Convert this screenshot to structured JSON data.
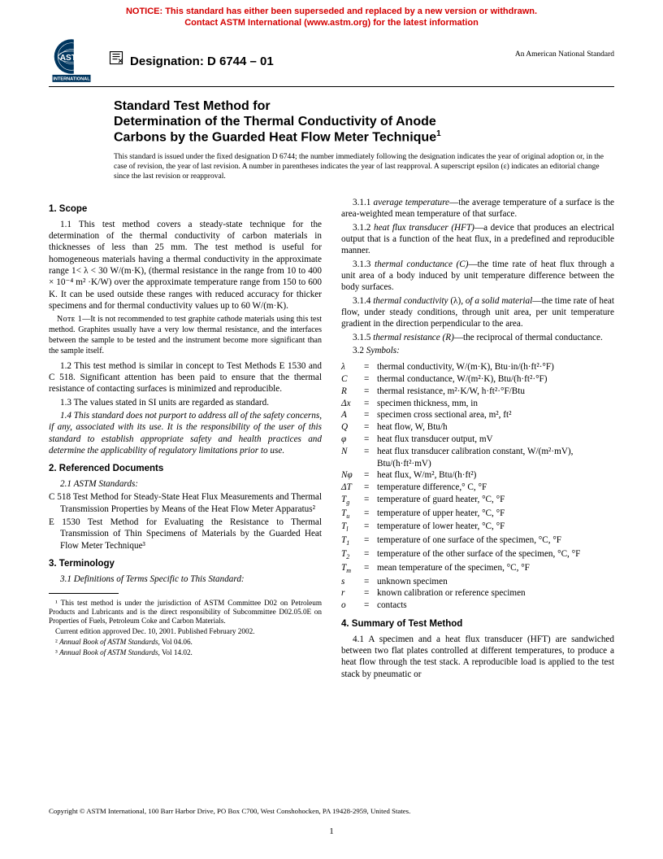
{
  "notice": {
    "line1": "NOTICE: This standard has either been superseded and replaced by a new version or withdrawn.",
    "line2": "Contact ASTM International (www.astm.org) for the latest information"
  },
  "header": {
    "designation_label": "Designation: D 6744 – 01",
    "right_note": "An American National Standard"
  },
  "title": {
    "line1": "Standard Test Method for",
    "line2": "Determination of the Thermal Conductivity of Anode",
    "line3": "Carbons by the Guarded Heat Flow Meter Technique"
  },
  "issued_note": "This standard is issued under the fixed designation D 6744; the number immediately following the designation indicates the year of original adoption or, in the case of revision, the year of last revision. A number in parentheses indicates the year of last reapproval. A superscript epsilon (ε) indicates an editorial change since the last revision or reapproval.",
  "sections": {
    "scope": {
      "head": "1. Scope",
      "p11": "1.1 This test method covers a steady-state technique for the determination of the thermal conductivity of carbon materials in thicknesses of less than 25 mm. The test method is useful for homogeneous materials having a thermal conductivity in the approximate range 1< λ < 30 W/(m·K), (thermal resistance in the range from 10 to 400 × 10⁻⁴ m² ·K/W) over the approximate temperature range from 150 to 600 K. It can be used outside these ranges with reduced accuracy for thicker specimens and for thermal conductivity values up to 60 W/(m·K).",
      "note1_label": "Nᴏᴛᴇ 1",
      "note1_text": "—It is not recommended to test graphite cathode materials using this test method. Graphites usually have a very low thermal resistance, and the interfaces between the sample to be tested and the instrument become more significant than the sample itself.",
      "p12": "1.2 This test method is similar in concept to Test Methods E 1530 and C 518. Significant attention has been paid to ensure that the thermal resistance of contacting surfaces is minimized and reproducible.",
      "p13": "1.3 The values stated in SI units are regarded as standard.",
      "p14": "1.4 This standard does not purport to address all of the safety concerns, if any, associated with its use. It is the responsibility of the user of this standard to establish appropriate safety and health practices and determine the applicability of regulatory limitations prior to use."
    },
    "refs": {
      "head": "2. Referenced Documents",
      "sub": "2.1 ASTM Standards:",
      "c518": "C 518 Test Method for Steady-State Heat Flux Measurements and Thermal Transmission Properties by Means of the Heat Flow Meter Apparatus²",
      "e1530": "E 1530 Test Method for Evaluating the Resistance to Thermal Transmission of Thin Specimens of Materials by the Guarded Heat Flow Meter Technique³"
    },
    "term": {
      "head": "3. Terminology",
      "sub": "3.1 Definitions of Terms Specific to This Standard:",
      "d311": "3.1.1 average temperature—the average temperature of a surface is the area-weighted mean temperature of that surface.",
      "d312": "3.1.2 heat flux transducer (HFT)—a device that produces an electrical output that is a function of the heat flux, in a predefined and reproducible manner.",
      "d313": "3.1.3 thermal conductance (C)—the time rate of heat flux through a unit area of a body induced by unit temperature difference between the body surfaces.",
      "d314": "3.1.4 thermal conductivity (λ), of a solid material—the time rate of heat flow, under steady conditions, through unit area, per unit temperature gradient in the direction perpendicular to the area.",
      "d315": "3.1.5 thermal resistance (R)—the reciprocal of thermal conductance.",
      "symhead": "3.2 Symbols:"
    },
    "symbols": [
      {
        "s": "λ",
        "d": "thermal conductivity, W/(m·K), Btu·in/(h·ft²·°F)"
      },
      {
        "s": "C",
        "d": "thermal conductance, W/(m²·K), Btu/(h·ft²·°F)"
      },
      {
        "s": "R",
        "d": "thermal resistance, m²·K/W, h·ft²·°F/Btu"
      },
      {
        "s": "Δx",
        "d": "specimen thickness, mm, in"
      },
      {
        "s": "A",
        "d": "specimen cross sectional area, m², ft²"
      },
      {
        "s": "Q",
        "d": "heat flow, W, Btu/h"
      },
      {
        "s": "φ",
        "d": "heat flux transducer output, mV"
      },
      {
        "s": "N",
        "d": "heat flux transducer calibration constant, W/(m²·mV), Btu/(h·ft²·mV)"
      },
      {
        "s": "Nφ",
        "d": "heat flux, W/m², Btu/(h·ft²)"
      },
      {
        "s": "ΔT",
        "d": "temperature difference,° C, °F"
      },
      {
        "s": "Tg",
        "d": "temperature of guard heater, °C, °F"
      },
      {
        "s": "Tu",
        "d": "temperature of upper heater, °C, °F"
      },
      {
        "s": "Tl",
        "d": "temperature of lower heater, °C, °F"
      },
      {
        "s": "T1",
        "d": "temperature of one surface of the specimen, °C, °F"
      },
      {
        "s": "T2",
        "d": "temperature of the other surface of the specimen, °C, °F"
      },
      {
        "s": "Tm",
        "d": "mean temperature of the specimen, °C, °F"
      },
      {
        "s": "s",
        "d": "unknown specimen"
      },
      {
        "s": "r",
        "d": "known calibration or reference specimen"
      },
      {
        "s": "o",
        "d": "contacts"
      }
    ],
    "summary": {
      "head": "4. Summary of Test Method",
      "p41": "4.1 A specimen and a heat flux transducer (HFT) are sandwiched between two flat plates controlled at different temperatures, to produce a heat flow through the test stack. A reproducible load is applied to the test stack by pneumatic or"
    }
  },
  "footnotes": {
    "f1": "¹ This test method is under the jurisdiction of ASTM Committee D02 on Petroleum Products and Lubricants and is the direct responsibility of Subcommittee D02.05.0E on Properties of Fuels, Petroleum Coke and Carbon Materials.",
    "f1b": "Current edition approved Dec. 10, 2001. Published February 2002.",
    "f2": "² Annual Book of ASTM Standards, Vol 04.06.",
    "f3": "³ Annual Book of ASTM Standards, Vol 14.02."
  },
  "copyright": "Copyright © ASTM International, 100 Barr Harbor Drive, PO Box C700, West Conshohocken, PA 19428-2959, United States.",
  "page_number": "1"
}
